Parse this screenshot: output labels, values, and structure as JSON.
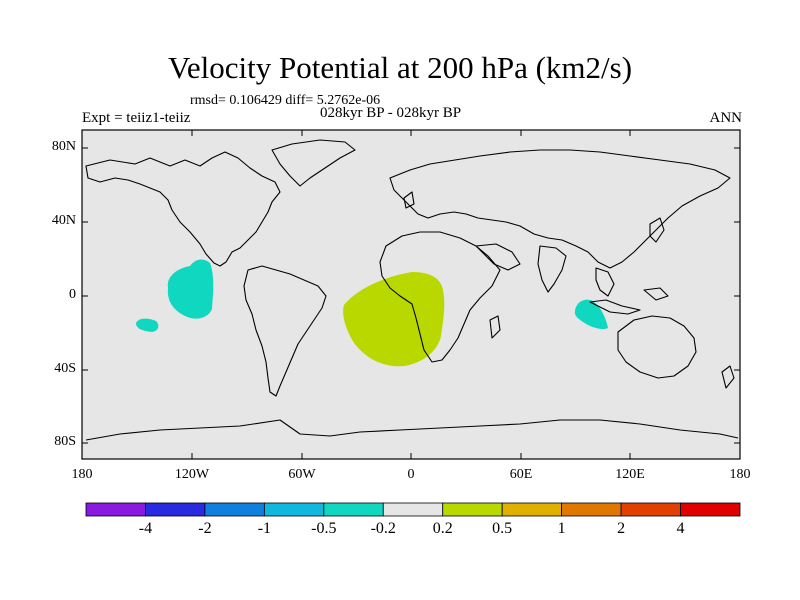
{
  "title": "Velocity Potential at 200 hPa (km2/s)",
  "stats": "rmsd= 0.106429 diff= 5.2762e-06",
  "subtitle": "028kyr BP - 028kyr BP",
  "expt": "Expt = teiiz1-teiiz",
  "season": "ANN",
  "map": {
    "background_color": "#e6e6e6",
    "coast_color": "#000000",
    "lat_labels": [
      "80N",
      "40N",
      "0",
      "40S",
      "80S"
    ],
    "lon_labels": [
      "180",
      "120W",
      "60W",
      "0",
      "60E",
      "120E",
      "180"
    ]
  },
  "anomalies": [
    {
      "name": "east-pacific-negative",
      "color": "#10d8c0"
    },
    {
      "name": "south-pacific-negative",
      "color": "#10d8c0"
    },
    {
      "name": "south-atlantic-positive",
      "color": "#b8d800"
    },
    {
      "name": "indian-ocean-negative",
      "color": "#10d8c0"
    }
  ],
  "colorbar": {
    "colors": [
      "#8a1ae0",
      "#2a2ae0",
      "#1080e0",
      "#10b8e0",
      "#10d8c0",
      "#e6e6e6",
      "#b8d800",
      "#e0b000",
      "#e07800",
      "#e04000",
      "#e00000"
    ],
    "labels": [
      "-4",
      "-2",
      "-1",
      "-0.5",
      "-0.2",
      "0.2",
      "0.5",
      "1",
      "2",
      "4"
    ]
  }
}
